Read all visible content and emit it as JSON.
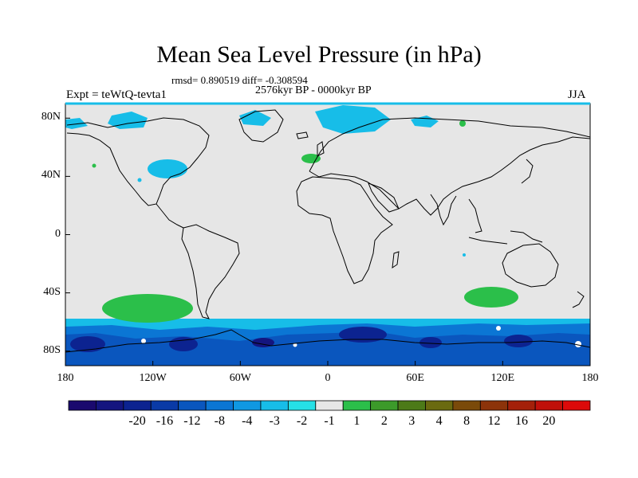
{
  "title": "Mean Sea Level Pressure (in hPa)",
  "stats_line": "rmsd= 0.890519 diff= -0.308594",
  "period": "2576kyr BP - 0000kyr BP",
  "experiment": "Expt = teWtQ-tevta1",
  "season": "JJA",
  "map": {
    "lon_range": [
      -180,
      180
    ],
    "lat_range": [
      -90,
      90
    ],
    "x_ticks": [
      "180",
      "120W",
      "60W",
      "0",
      "60E",
      "120E",
      "180"
    ],
    "y_ticks": [
      "80N",
      "40N",
      "0",
      "40S",
      "80S"
    ],
    "background_color": "#e6e6e6",
    "coast_color": "#000000"
  },
  "colorbar": {
    "labels": [
      "-20",
      "-16",
      "-12",
      "-8",
      "-4",
      "-3",
      "-2",
      "-1",
      "1",
      "2",
      "3",
      "4",
      "8",
      "12",
      "16",
      "20"
    ],
    "colors": [
      "#1a0a6e",
      "#14157f",
      "#0c2390",
      "#0a3aa6",
      "#0a56be",
      "#0b76d4",
      "#1098e2",
      "#17bde8",
      "#25e0e6",
      "#e6e6e6",
      "#2bbf4a",
      "#3c9a2a",
      "#4c7a18",
      "#6a6a10",
      "#7a4a0a",
      "#8c330a",
      "#a4200a",
      "#c0100a",
      "#dc0a0a"
    ]
  }
}
